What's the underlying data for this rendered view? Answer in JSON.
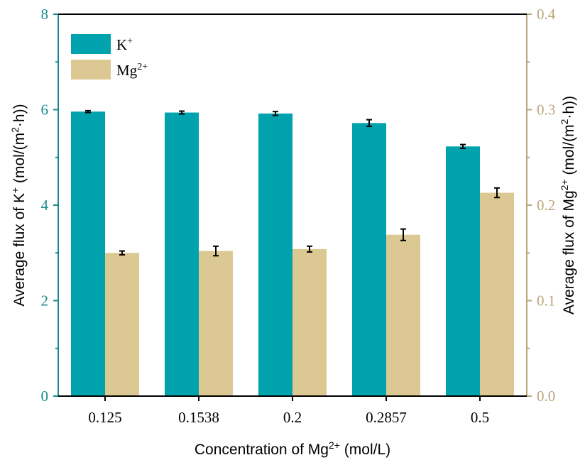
{
  "chart_data": {
    "type": "bar",
    "categories": [
      "0.125",
      "0.1538",
      "0.2",
      "0.2857",
      "0.5"
    ],
    "xlabel": {
      "prefix": "Concentration of Mg",
      "sup": "2+",
      "suffix": " (mol/L)"
    },
    "ylabel_left": {
      "prefix": "Average flux of K",
      "sup": "+",
      "suffix": " (mol/(m",
      "sup2": "2",
      "suffix2": "·h))"
    },
    "ylabel_right": {
      "prefix": "Average flux of Mg",
      "sup": "2+",
      "suffix": " (mol/(m",
      "sup2": "2",
      "suffix2": "·h))"
    },
    "y_left": {
      "min": 0,
      "max": 8,
      "ticks": [
        "0",
        "2",
        "4",
        "6",
        "8"
      ],
      "color": "#1a8b8e"
    },
    "y_right": {
      "min": 0,
      "max": 0.4,
      "ticks": [
        "0.0",
        "0.1",
        "0.2",
        "0.3",
        "0.4"
      ],
      "color": "#b8a77a"
    },
    "series": [
      {
        "name": "K+",
        "legend": {
          "base": "K",
          "sup": "+"
        },
        "axis": "left",
        "color": "#00a3ad",
        "values": [
          5.96,
          5.94,
          5.92,
          5.72,
          5.23
        ],
        "errors": [
          0.02,
          0.03,
          0.04,
          0.07,
          0.04
        ]
      },
      {
        "name": "Mg2+",
        "legend": {
          "base": "Mg",
          "sup": "2+"
        },
        "axis": "right",
        "color": "#dcc892",
        "values": [
          0.15,
          0.152,
          0.154,
          0.169,
          0.213
        ],
        "errors": [
          0.002,
          0.005,
          0.003,
          0.006,
          0.005
        ]
      }
    ],
    "grid": false,
    "legend_position": "top-left"
  }
}
